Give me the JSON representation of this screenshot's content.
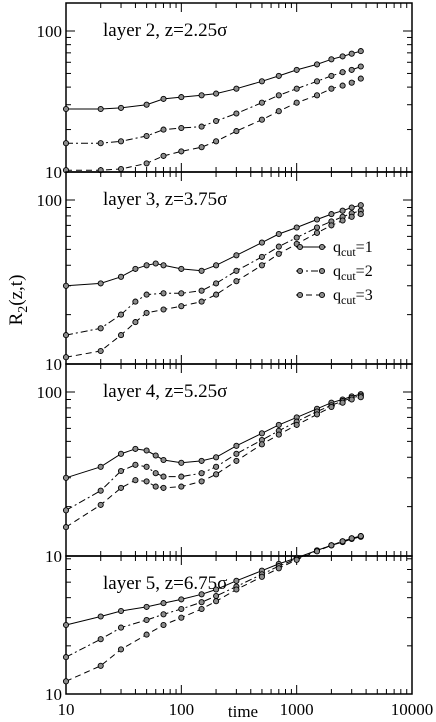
{
  "chart_data": {
    "type": "line",
    "layout": "4 vertically stacked panels sharing a logarithmic x axis",
    "xlabel": "time",
    "ylabel": "R2(z,t)",
    "xscale": "log",
    "yscale": "log",
    "xlim": [
      10,
      10000
    ],
    "ylim": [
      10,
      150
    ],
    "xticks": [
      "10",
      "100",
      "1000",
      "10000"
    ],
    "yticks": [
      "10",
      "100"
    ],
    "legend": {
      "placement": "right side of the layer 3 panel",
      "entries": [
        {
          "label": "q",
          "sub": "cut",
          "value": "=1",
          "style": "solid"
        },
        {
          "label": "q",
          "sub": "cut",
          "value": "=2",
          "style": "dash-dot"
        },
        {
          "label": "q",
          "sub": "cut",
          "value": "=3",
          "style": "dashed"
        }
      ]
    },
    "panels": [
      {
        "label": "layer 2, z=2.25σ",
        "series": [
          {
            "style": "solid",
            "points": [
              [
                10,
                28
              ],
              [
                20,
                28
              ],
              [
                30,
                28.5
              ],
              [
                50,
                30
              ],
              [
                70,
                33
              ],
              [
                100,
                34
              ],
              [
                150,
                35
              ],
              [
                200,
                36
              ],
              [
                300,
                39
              ],
              [
                500,
                44
              ],
              [
                700,
                48
              ],
              [
                1000,
                53
              ],
              [
                1500,
                58
              ],
              [
                2000,
                63
              ],
              [
                2500,
                66
              ],
              [
                3000,
                69
              ],
              [
                3600,
                72
              ]
            ]
          },
          {
            "style": "dash-dot",
            "points": [
              [
                10,
                16
              ],
              [
                20,
                16
              ],
              [
                30,
                16.5
              ],
              [
                50,
                18
              ],
              [
                70,
                20
              ],
              [
                100,
                20.5
              ],
              [
                150,
                21
              ],
              [
                200,
                23
              ],
              [
                300,
                26
              ],
              [
                500,
                31
              ],
              [
                700,
                35
              ],
              [
                1000,
                39
              ],
              [
                1500,
                44
              ],
              [
                2000,
                48
              ],
              [
                2500,
                51
              ],
              [
                3000,
                53
              ],
              [
                3600,
                56
              ]
            ]
          },
          {
            "style": "dashed",
            "points": [
              [
                10,
                10.3
              ],
              [
                20,
                10.3
              ],
              [
                30,
                10.5
              ],
              [
                50,
                11.5
              ],
              [
                70,
                13
              ],
              [
                100,
                14
              ],
              [
                150,
                15
              ],
              [
                200,
                16.5
              ],
              [
                300,
                19.5
              ],
              [
                500,
                23.5
              ],
              [
                700,
                27
              ],
              [
                1000,
                31
              ],
              [
                1500,
                35
              ],
              [
                2000,
                39
              ],
              [
                2500,
                41
              ],
              [
                3000,
                43
              ],
              [
                3600,
                46
              ]
            ]
          }
        ]
      },
      {
        "label": "layer 3, z=3.75σ",
        "series": [
          {
            "style": "solid",
            "points": [
              [
                10,
                30
              ],
              [
                20,
                31
              ],
              [
                30,
                34
              ],
              [
                40,
                38
              ],
              [
                50,
                40
              ],
              [
                60,
                41
              ],
              [
                70,
                40
              ],
              [
                100,
                38
              ],
              [
                150,
                37
              ],
              [
                200,
                40
              ],
              [
                300,
                46
              ],
              [
                500,
                55
              ],
              [
                700,
                62
              ],
              [
                1000,
                68
              ],
              [
                1500,
                76
              ],
              [
                2000,
                82
              ],
              [
                2500,
                86
              ],
              [
                3000,
                90
              ],
              [
                3600,
                93
              ]
            ]
          },
          {
            "style": "dash-dot",
            "points": [
              [
                10,
                15
              ],
              [
                20,
                16.5
              ],
              [
                30,
                20
              ],
              [
                40,
                24
              ],
              [
                50,
                26.5
              ],
              [
                70,
                27
              ],
              [
                100,
                27
              ],
              [
                150,
                28
              ],
              [
                200,
                31
              ],
              [
                300,
                37
              ],
              [
                500,
                45
              ],
              [
                700,
                52
              ],
              [
                1000,
                59
              ],
              [
                1500,
                68
              ],
              [
                2000,
                74
              ],
              [
                2500,
                79
              ],
              [
                3000,
                83
              ],
              [
                3600,
                86
              ]
            ]
          },
          {
            "style": "dashed",
            "points": [
              [
                10,
                11
              ],
              [
                20,
                12
              ],
              [
                30,
                15
              ],
              [
                40,
                18
              ],
              [
                50,
                20.5
              ],
              [
                70,
                21.5
              ],
              [
                100,
                22.5
              ],
              [
                150,
                24
              ],
              [
                200,
                26.5
              ],
              [
                300,
                32
              ],
              [
                500,
                40
              ],
              [
                700,
                47
              ],
              [
                1000,
                54
              ],
              [
                1500,
                63
              ],
              [
                2000,
                70
              ],
              [
                2500,
                75
              ],
              [
                3000,
                79
              ],
              [
                3600,
                82
              ]
            ]
          }
        ]
      },
      {
        "label": "layer 4, z=5.25σ",
        "series": [
          {
            "style": "solid",
            "points": [
              [
                10,
                30
              ],
              [
                20,
                35
              ],
              [
                30,
                42
              ],
              [
                40,
                45
              ],
              [
                50,
                44
              ],
              [
                60,
                41
              ],
              [
                70,
                38.5
              ],
              [
                100,
                37
              ],
              [
                150,
                38
              ],
              [
                200,
                40
              ],
              [
                300,
                47
              ],
              [
                500,
                56
              ],
              [
                700,
                63
              ],
              [
                1000,
                70
              ],
              [
                1500,
                79
              ],
              [
                2000,
                86
              ],
              [
                2500,
                90
              ],
              [
                3000,
                94
              ],
              [
                3600,
                97
              ]
            ]
          },
          {
            "style": "dash-dot",
            "points": [
              [
                10,
                19
              ],
              [
                20,
                25
              ],
              [
                30,
                33
              ],
              [
                40,
                36
              ],
              [
                50,
                35
              ],
              [
                60,
                32
              ],
              [
                70,
                30.5
              ],
              [
                100,
                30.5
              ],
              [
                150,
                32
              ],
              [
                200,
                35
              ],
              [
                300,
                42
              ],
              [
                500,
                51
              ],
              [
                700,
                58
              ],
              [
                1000,
                66
              ],
              [
                1500,
                76
              ],
              [
                2000,
                83
              ],
              [
                2500,
                88
              ],
              [
                3000,
                92
              ],
              [
                3600,
                95
              ]
            ]
          },
          {
            "style": "dashed",
            "points": [
              [
                10,
                15
              ],
              [
                20,
                20.5
              ],
              [
                30,
                26
              ],
              [
                40,
                29
              ],
              [
                50,
                28.5
              ],
              [
                60,
                26.5
              ],
              [
                70,
                26
              ],
              [
                100,
                26.5
              ],
              [
                150,
                28.5
              ],
              [
                200,
                31.5
              ],
              [
                300,
                38
              ],
              [
                500,
                48
              ],
              [
                700,
                55
              ],
              [
                1000,
                63
              ],
              [
                1500,
                73
              ],
              [
                2000,
                81
              ],
              [
                2500,
                86
              ],
              [
                3000,
                90
              ],
              [
                3600,
                93
              ]
            ]
          }
        ]
      },
      {
        "label": "layer 5, z=6.75σ",
        "series": [
          {
            "style": "solid",
            "points": [
              [
                10,
                27
              ],
              [
                20,
                30.5
              ],
              [
                30,
                33
              ],
              [
                50,
                35
              ],
              [
                70,
                37
              ],
              [
                100,
                39
              ],
              [
                150,
                42
              ],
              [
                200,
                45
              ],
              [
                300,
                51
              ],
              [
                500,
                59
              ],
              [
                700,
                65
              ],
              [
                1000,
                71
              ],
              [
                1500,
                79
              ],
              [
                2000,
                85
              ],
              [
                2500,
                89
              ],
              [
                3000,
                93
              ],
              [
                3600,
                96
              ]
            ]
          },
          {
            "style": "dash-dot",
            "points": [
              [
                10,
                17
              ],
              [
                20,
                22
              ],
              [
                30,
                26
              ],
              [
                50,
                29
              ],
              [
                70,
                31.5
              ],
              [
                100,
                34
              ],
              [
                150,
                37.5
              ],
              [
                200,
                41
              ],
              [
                300,
                47
              ],
              [
                500,
                56
              ],
              [
                700,
                63
              ],
              [
                1000,
                70
              ],
              [
                1500,
                79
              ],
              [
                2000,
                85
              ],
              [
                2500,
                90
              ],
              [
                3000,
                94
              ],
              [
                3600,
                97
              ]
            ]
          },
          {
            "style": "dashed",
            "points": [
              [
                10,
                12
              ],
              [
                20,
                15
              ],
              [
                30,
                19
              ],
              [
                50,
                23.5
              ],
              [
                70,
                27
              ],
              [
                100,
                30
              ],
              [
                150,
                34
              ],
              [
                200,
                38
              ],
              [
                300,
                45
              ],
              [
                500,
                54
              ],
              [
                700,
                61
              ],
              [
                1000,
                69
              ],
              [
                1500,
                78
              ],
              [
                2000,
                85
              ],
              [
                2500,
                90
              ],
              [
                3000,
                94
              ],
              [
                3600,
                97
              ]
            ]
          }
        ]
      }
    ]
  }
}
